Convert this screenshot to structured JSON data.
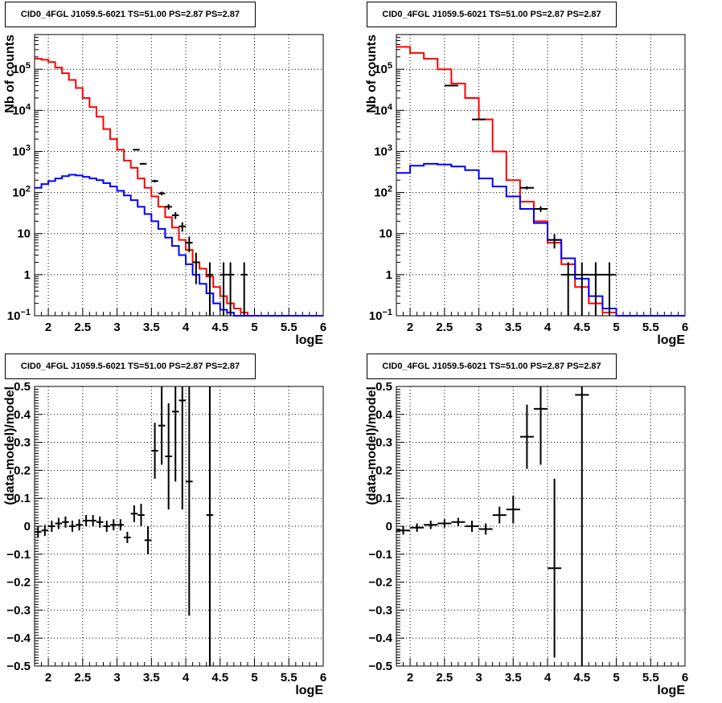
{
  "colors": {
    "data": "#000000",
    "total_model": "#ff0000",
    "source_model": "#0000ff"
  },
  "chart_data": [
    {
      "id": "tl",
      "type": "line",
      "title": "CID0_4FGL J1059.5-6021 TS=51.00 PS=2.87 PS=2.87",
      "xlabel": "logE",
      "ylabel": "Nb of counts",
      "xlim": [
        1.8,
        6.0
      ],
      "ylim": [
        0.1,
        700000
      ],
      "yscale": "log",
      "grid": true,
      "xticks": [
        "2",
        "2.5",
        "3",
        "3.5",
        "4",
        "4.5",
        "5",
        "5.5",
        "6"
      ],
      "yticks": [
        "10^-1",
        "1",
        "10",
        "10^2",
        "10^3",
        "10^4",
        "10^5"
      ],
      "series": [
        {
          "color": "red",
          "edges": [
            1.8,
            1.9,
            2.0,
            2.1,
            2.2,
            2.3,
            2.4,
            2.5,
            2.6,
            2.7,
            2.8,
            2.9,
            3.0,
            3.1,
            3.2,
            3.3,
            3.4,
            3.5,
            3.6,
            3.7,
            3.8,
            3.9,
            4.0,
            4.1,
            4.2,
            4.3,
            4.4,
            4.5,
            4.6,
            4.7,
            4.8,
            4.9,
            5.0,
            5.5,
            6.0
          ],
          "values": [
            180000,
            170000,
            150000,
            110000,
            80000,
            55000,
            35000,
            20000,
            12000,
            7000,
            3500,
            2000,
            1100,
            600,
            400,
            220,
            130,
            80,
            45,
            25,
            14,
            7,
            4,
            2,
            1.4,
            0.9,
            0.5,
            0.3,
            0.2,
            0.15,
            0.12,
            0.1,
            0.1,
            0.1
          ]
        },
        {
          "color": "blue",
          "edges": [
            1.8,
            1.9,
            2.0,
            2.1,
            2.2,
            2.3,
            2.4,
            2.5,
            2.6,
            2.7,
            2.8,
            2.9,
            3.0,
            3.1,
            3.2,
            3.3,
            3.4,
            3.5,
            3.6,
            3.7,
            3.8,
            3.9,
            4.0,
            4.1,
            4.2,
            4.3,
            4.4,
            4.5,
            4.6,
            4.7,
            4.8,
            4.9,
            5.0,
            5.5,
            6.0
          ],
          "values": [
            130,
            160,
            190,
            220,
            250,
            270,
            260,
            240,
            220,
            200,
            170,
            140,
            110,
            85,
            65,
            45,
            30,
            20,
            13,
            8,
            5,
            3,
            1.8,
            1,
            0.6,
            0.35,
            0.2,
            0.14,
            0.12,
            0.1,
            0.1,
            0.1,
            0.1,
            0.1
          ]
        }
      ],
      "points": [
        {
          "x": 3.28,
          "y": 1100,
          "xerr": 0.05
        },
        {
          "x": 3.38,
          "y": 500,
          "xerr": 0.05
        },
        {
          "x": 3.55,
          "y": 190,
          "xerr": 0.05
        },
        {
          "x": 3.65,
          "y": 95,
          "xerr": 0.05
        },
        {
          "x": 3.75,
          "y": 45,
          "xerr": 0.05
        },
        {
          "x": 3.85,
          "y": 28,
          "xerr": 0.05
        },
        {
          "x": 3.95,
          "y": 15,
          "xerr": 0.05
        },
        {
          "x": 4.05,
          "y": 6,
          "xerr": 0.05
        },
        {
          "x": 4.15,
          "y": 2,
          "xerr": 0.05
        },
        {
          "x": 4.35,
          "y": 1,
          "xerr": 0.05
        },
        {
          "x": 4.55,
          "y": 1,
          "xerr": 0.05
        },
        {
          "x": 4.65,
          "y": 1,
          "xerr": 0.05
        },
        {
          "x": 4.85,
          "y": 1,
          "xerr": 0.05
        }
      ]
    },
    {
      "id": "tr",
      "type": "line",
      "title": "CID0_4FGL J1059.5-6021 TS=51.00 PS=2.87 PS=2.87",
      "xlabel": "logE",
      "ylabel": "Nb of counts",
      "xlim": [
        1.8,
        6.0
      ],
      "ylim": [
        0.1,
        700000
      ],
      "yscale": "log",
      "grid": true,
      "xticks": [
        "2",
        "2.5",
        "3",
        "3.5",
        "4",
        "4.5",
        "5",
        "5.5",
        "6"
      ],
      "yticks": [
        "10^-1",
        "1",
        "10",
        "10^2",
        "10^3",
        "10^4",
        "10^5"
      ],
      "series": [
        {
          "color": "red",
          "edges": [
            1.8,
            2.0,
            2.2,
            2.4,
            2.6,
            2.8,
            3.0,
            3.2,
            3.4,
            3.6,
            3.8,
            4.0,
            4.2,
            4.4,
            4.6,
            4.8,
            5.0,
            6.0
          ],
          "values": [
            350000,
            250000,
            180000,
            100000,
            45000,
            20000,
            6000,
            1000,
            200,
            60,
            20,
            6,
            1.8,
            0.5,
            0.2,
            0.12,
            0.1
          ]
        },
        {
          "color": "blue",
          "edges": [
            1.8,
            2.0,
            2.2,
            2.4,
            2.6,
            2.8,
            3.0,
            3.2,
            3.4,
            3.6,
            3.8,
            4.0,
            4.2,
            4.4,
            4.6,
            4.8,
            5.0,
            6.0
          ],
          "values": [
            300,
            450,
            500,
            480,
            430,
            350,
            220,
            140,
            80,
            40,
            18,
            7,
            2.5,
            0.8,
            0.3,
            0.15,
            0.1
          ]
        }
      ],
      "points": [
        {
          "x": 2.6,
          "y": 40000,
          "xerr": 0.1
        },
        {
          "x": 3.0,
          "y": 6000,
          "xerr": 0.1
        },
        {
          "x": 3.7,
          "y": 130,
          "xerr": 0.1
        },
        {
          "x": 3.9,
          "y": 40,
          "xerr": 0.1
        },
        {
          "x": 4.1,
          "y": 7,
          "xerr": 0.1
        },
        {
          "x": 4.3,
          "y": 1,
          "xerr": 0.1
        },
        {
          "x": 4.5,
          "y": 1,
          "xerr": 0.1
        },
        {
          "x": 4.7,
          "y": 1,
          "xerr": 0.1
        },
        {
          "x": 4.9,
          "y": 1,
          "xerr": 0.1
        }
      ]
    },
    {
      "id": "bl",
      "type": "scatter",
      "title": "CID0_4FGL J1059.5-6021 TS=51.00 PS=2.87 PS=2.87",
      "xlabel": "logE",
      "ylabel": "(data-model)/model",
      "xlim": [
        1.8,
        6.0
      ],
      "ylim": [
        -0.5,
        0.5
      ],
      "grid": true,
      "xticks": [
        "2",
        "2.5",
        "3",
        "3.5",
        "4",
        "4.5",
        "5",
        "5.5",
        "6"
      ],
      "yticks": [
        "-0.5",
        "-0.4",
        "-0.3",
        "-0.2",
        "-0.1",
        "0",
        "0.1",
        "0.2",
        "0.3",
        "0.4",
        "0.5"
      ],
      "points": [
        {
          "x": 1.85,
          "y": -0.02,
          "xerr": 0.05,
          "yerr": 0.02
        },
        {
          "x": 1.95,
          "y": -0.015,
          "xerr": 0.05,
          "yerr": 0.02
        },
        {
          "x": 2.05,
          "y": 0.0,
          "xerr": 0.05,
          "yerr": 0.02
        },
        {
          "x": 2.15,
          "y": 0.01,
          "xerr": 0.05,
          "yerr": 0.02
        },
        {
          "x": 2.25,
          "y": 0.015,
          "xerr": 0.05,
          "yerr": 0.02
        },
        {
          "x": 2.35,
          "y": 0.0,
          "xerr": 0.05,
          "yerr": 0.02
        },
        {
          "x": 2.45,
          "y": 0.005,
          "xerr": 0.05,
          "yerr": 0.02
        },
        {
          "x": 2.55,
          "y": 0.02,
          "xerr": 0.05,
          "yerr": 0.02
        },
        {
          "x": 2.65,
          "y": 0.02,
          "xerr": 0.05,
          "yerr": 0.02
        },
        {
          "x": 2.75,
          "y": 0.015,
          "xerr": 0.05,
          "yerr": 0.02
        },
        {
          "x": 2.85,
          "y": 0.0,
          "xerr": 0.05,
          "yerr": 0.02
        },
        {
          "x": 2.95,
          "y": 0.005,
          "xerr": 0.05,
          "yerr": 0.02
        },
        {
          "x": 3.05,
          "y": 0.005,
          "xerr": 0.05,
          "yerr": 0.02
        },
        {
          "x": 3.15,
          "y": -0.04,
          "xerr": 0.05,
          "yerr": 0.02
        },
        {
          "x": 3.25,
          "y": 0.045,
          "xerr": 0.05,
          "yerr": 0.03
        },
        {
          "x": 3.35,
          "y": 0.04,
          "xerr": 0.05,
          "yerr": 0.04
        },
        {
          "x": 3.45,
          "y": -0.05,
          "xerr": 0.05,
          "yerr": 0.05
        },
        {
          "x": 3.55,
          "y": 0.27,
          "xerr": 0.05,
          "yerr": 0.1
        },
        {
          "x": 3.65,
          "y": 0.36,
          "xerr": 0.05,
          "yerr": 0.14
        },
        {
          "x": 3.75,
          "y": 0.25,
          "xerr": 0.05,
          "yerr": 0.19
        },
        {
          "x": 3.85,
          "y": 0.41,
          "xerr": 0.05,
          "yerr": 0.25
        },
        {
          "x": 3.95,
          "y": 0.45,
          "xerr": 0.05,
          "yerr": 0.39
        },
        {
          "x": 4.05,
          "y": 0.16,
          "xerr": 0.05,
          "yerr": 0.48
        },
        {
          "x": 4.35,
          "y": 0.04,
          "xerr": 0.05,
          "yerr": 1.0
        }
      ]
    },
    {
      "id": "br",
      "type": "scatter",
      "title": "CID0_4FGL J1059.5-6021 TS=51.00 PS=2.87 PS=2.87",
      "xlabel": "logE",
      "ylabel": "(data-model)/model",
      "xlim": [
        1.8,
        6.0
      ],
      "ylim": [
        -0.5,
        0.5
      ],
      "grid": true,
      "xticks": [
        "2",
        "2.5",
        "3",
        "3.5",
        "4",
        "4.5",
        "5",
        "5.5",
        "6"
      ],
      "yticks": [
        "-0.5",
        "-0.4",
        "-0.3",
        "-0.2",
        "-0.1",
        "0",
        "0.1",
        "0.2",
        "0.3",
        "0.4",
        "0.5"
      ],
      "points": [
        {
          "x": 1.9,
          "y": -0.015,
          "xerr": 0.1,
          "yerr": 0.015
        },
        {
          "x": 2.1,
          "y": -0.005,
          "xerr": 0.1,
          "yerr": 0.015
        },
        {
          "x": 2.3,
          "y": 0.005,
          "xerr": 0.1,
          "yerr": 0.015
        },
        {
          "x": 2.5,
          "y": 0.01,
          "xerr": 0.1,
          "yerr": 0.015
        },
        {
          "x": 2.7,
          "y": 0.015,
          "xerr": 0.1,
          "yerr": 0.015
        },
        {
          "x": 2.9,
          "y": 0.0,
          "xerr": 0.1,
          "yerr": 0.02
        },
        {
          "x": 3.1,
          "y": -0.01,
          "xerr": 0.1,
          "yerr": 0.02
        },
        {
          "x": 3.3,
          "y": 0.04,
          "xerr": 0.1,
          "yerr": 0.03
        },
        {
          "x": 3.5,
          "y": 0.06,
          "xerr": 0.1,
          "yerr": 0.05
        },
        {
          "x": 3.7,
          "y": 0.32,
          "xerr": 0.1,
          "yerr": 0.115
        },
        {
          "x": 3.9,
          "y": 0.42,
          "xerr": 0.1,
          "yerr": 0.2
        },
        {
          "x": 4.1,
          "y": -0.15,
          "xerr": 0.1,
          "yerr": 0.32
        },
        {
          "x": 4.5,
          "y": 0.47,
          "xerr": 0.1,
          "yerr": 1.0
        }
      ]
    }
  ]
}
